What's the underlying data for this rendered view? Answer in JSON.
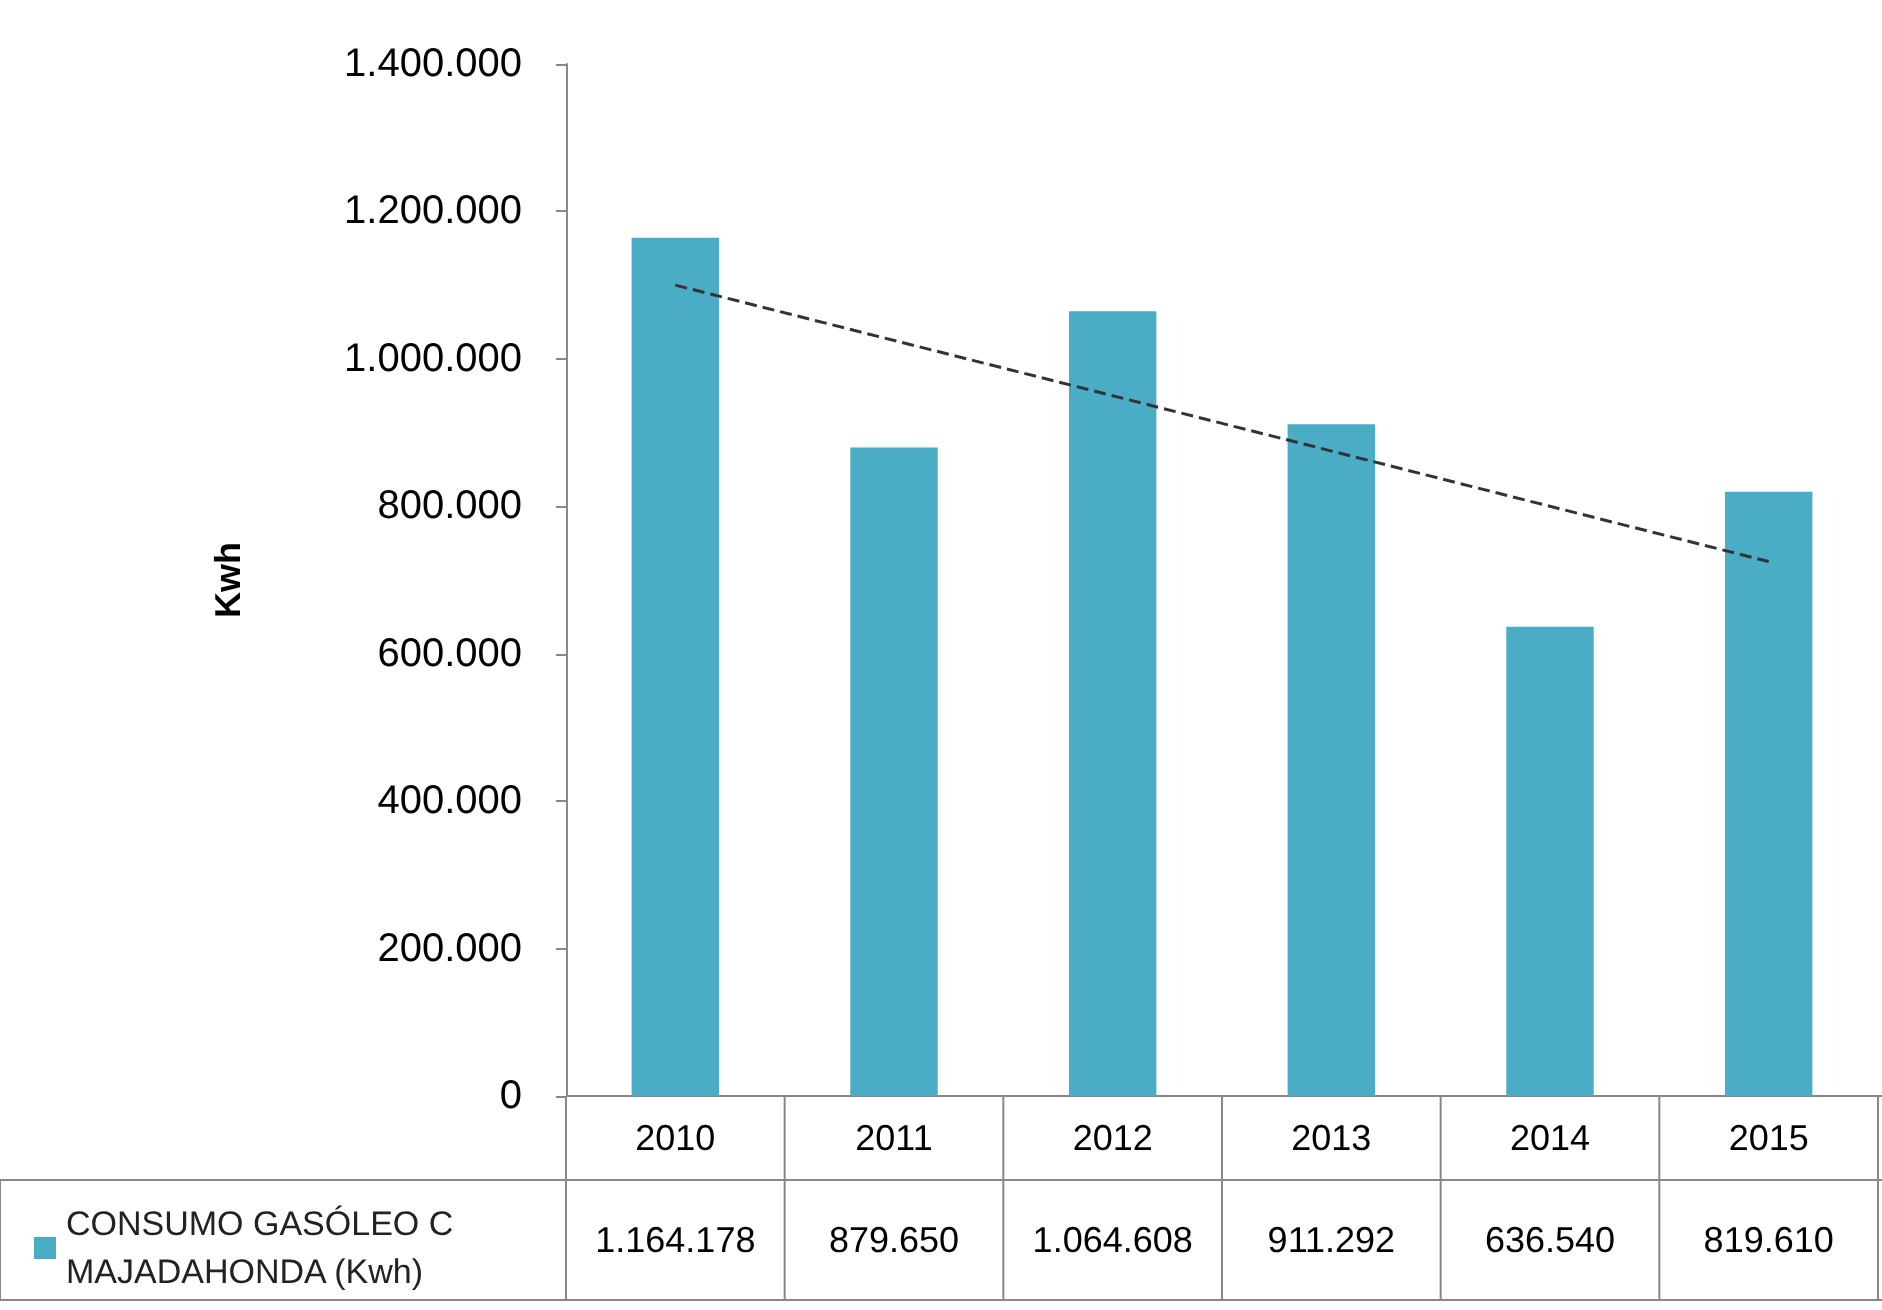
{
  "chart_data": {
    "type": "bar",
    "ylabel": "Kwh",
    "categories": [
      "2010",
      "2011",
      "2012",
      "2013",
      "2014",
      "2015"
    ],
    "series": [
      {
        "name": "CONSUMO GASÓLEO C MAJADAHONDA (Kwh)",
        "color": "#4bacc6",
        "values": [
          1164178,
          879650,
          1064608,
          911292,
          636540,
          819610
        ],
        "value_labels": [
          "1.164.178",
          "879.650",
          "1.064.608",
          "911.292",
          "636.540",
          "819.610"
        ]
      },
      {
        "type": "line",
        "color": "#333333",
        "line_style": "dashed",
        "marker": "none",
        "values": [
          1100000,
          null,
          null,
          null,
          null,
          725000
        ]
      }
    ],
    "ylim": [
      0,
      1400000
    ],
    "yticks": [
      0,
      {
        "value": 200000,
        "label": "200.000"
      },
      {
        "value": 400000,
        "label": "400.000"
      },
      {
        "value": 600000,
        "label": "600.000"
      },
      {
        "value": 800000,
        "label": "800.000"
      },
      {
        "value": 1000000,
        "label": "1.000.000"
      },
      {
        "value": 1200000,
        "label": "1.200.000"
      },
      {
        "value": 1400000,
        "label": "1.400.000"
      }
    ],
    "legend": "bottom left"
  }
}
